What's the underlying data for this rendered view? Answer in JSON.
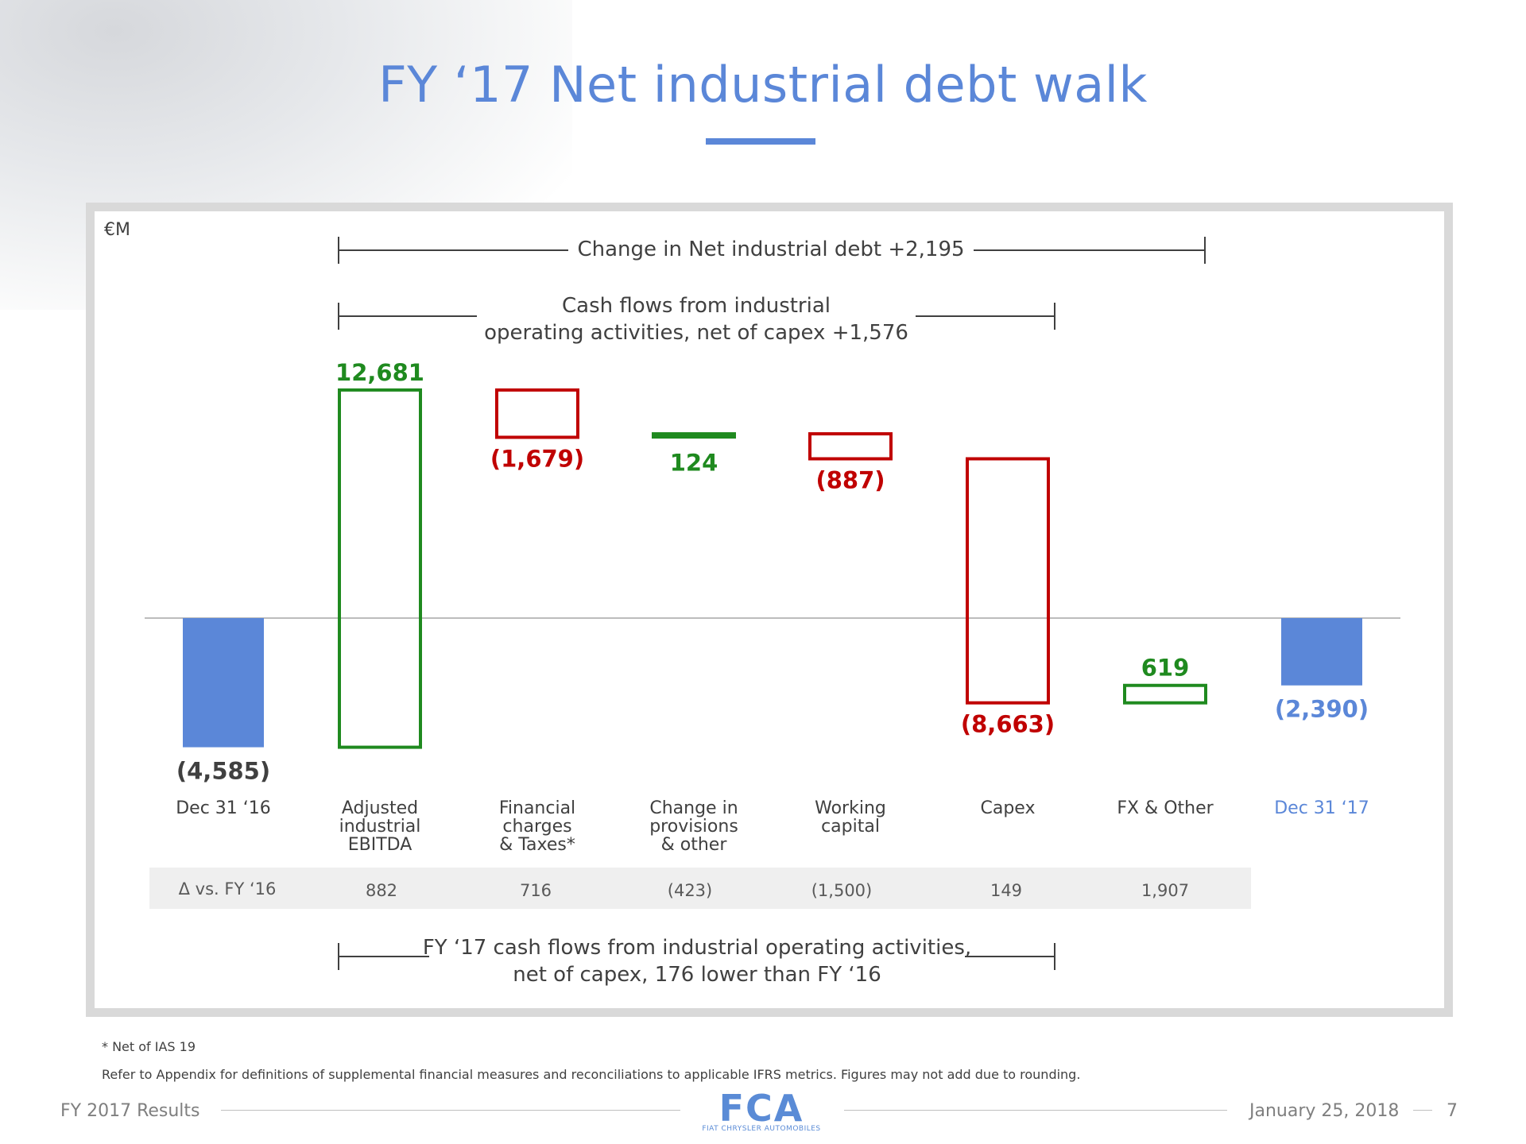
{
  "slide": {
    "title": "FY ‘17 Net industrial debt walk",
    "unit_label": "€M"
  },
  "chart_data": {
    "type": "waterfall",
    "unit": "€M",
    "categories": [
      "Dec 31 ‘16",
      "Adjusted industrial EBITDA",
      "Financial charges & Taxes*",
      "Change in provisions & other",
      "Working capital",
      "Capex",
      "FX & Other",
      "Dec 31 ‘17"
    ],
    "category_lines": [
      [
        "Dec 31 ‘16"
      ],
      [
        "Adjusted",
        "industrial",
        "EBITDA"
      ],
      [
        "Financial",
        "charges",
        "& Taxes*"
      ],
      [
        "Change in",
        "provisions",
        "& other"
      ],
      [
        "Working",
        "capital"
      ],
      [
        "Capex"
      ],
      [
        "FX & Other"
      ],
      [
        "Dec 31 ‘17"
      ]
    ],
    "values": [
      -4585,
      12681,
      -1679,
      124,
      -887,
      -8663,
      619,
      -2390
    ],
    "value_labels": [
      "(4,585)",
      "12,681",
      "(1,679)",
      "124",
      "(887)",
      "(8,663)",
      "619",
      "(2,390)"
    ],
    "kinds": [
      "total",
      "delta",
      "delta",
      "delta",
      "delta",
      "delta",
      "delta",
      "total"
    ],
    "colors": {
      "total": "#5b87d8",
      "increase": "#1f8a1f",
      "decrease": "#c00000",
      "total_label_first": "#404040",
      "total_label_last": "#5b87d8"
    },
    "delta_row": {
      "label": "Δ vs. FY ‘16",
      "values": [
        "882",
        "716",
        "(423)",
        "(1,500)",
        "149",
        "1,907"
      ]
    },
    "brackets": [
      {
        "lines": [
          "Change in Net industrial debt +2,195"
        ],
        "from": 1,
        "to": 6
      },
      {
        "lines": [
          "Cash flows from industrial",
          "operating activities, net of capex +1,576"
        ],
        "from": 1,
        "to": 5
      },
      {
        "lines": [
          "FY ‘17 cash flows from industrial operating activities,",
          "net of capex, 176 lower than FY ‘16"
        ],
        "from": 1,
        "to": 5
      }
    ]
  },
  "footnotes": {
    "note1": "*  Net of IAS 19",
    "note2": "Refer to Appendix for definitions of supplemental financial measures and reconciliations to applicable IFRS metrics. Figures may not add due to rounding."
  },
  "footer": {
    "left": "FY 2017 Results",
    "date": "January 25, 2018",
    "page": "7",
    "logo": "FCA",
    "logo_sub": "FIAT CHRYSLER AUTOMOBILES"
  }
}
